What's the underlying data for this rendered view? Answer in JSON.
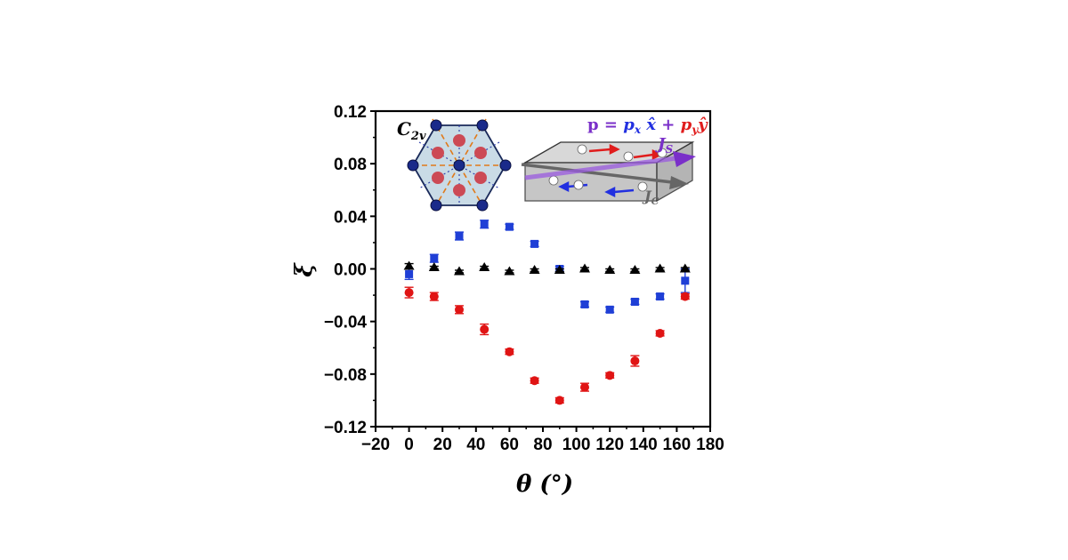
{
  "chart_data": {
    "type": "scatter",
    "title": "",
    "xlabel": "θ (°)",
    "ylabel": "ξ",
    "xlim": [
      -20,
      180
    ],
    "ylim": [
      -0.12,
      0.12
    ],
    "xticks": [
      -20,
      0,
      20,
      40,
      60,
      80,
      100,
      120,
      140,
      160,
      180
    ],
    "xtick_labels": [
      "−20",
      "0",
      "20",
      "40",
      "60",
      "80",
      "100",
      "120",
      "140",
      "160",
      "180"
    ],
    "yticks": [
      -0.12,
      -0.08,
      -0.04,
      0.0,
      0.04,
      0.08,
      0.12
    ],
    "ytick_labels": [
      "−0.12",
      "−0.08",
      "−0.04",
      "0.00",
      "0.04",
      "0.08",
      "0.12"
    ],
    "grid": false,
    "legend": "none",
    "series": [
      {
        "marker": "square",
        "color": "#1f3fd6",
        "x": [
          0,
          15,
          30,
          45,
          60,
          75,
          90,
          105,
          120,
          135,
          150,
          165
        ],
        "y": [
          -0.004,
          0.008,
          0.025,
          0.034,
          0.032,
          0.019,
          0.0,
          -0.027,
          -0.031,
          -0.025,
          -0.021,
          -0.009
        ],
        "yerr": [
          0.004,
          0.003,
          0.003,
          0.003,
          0.002,
          0.002,
          0.002,
          0.002,
          0.002,
          0.002,
          0.002,
          0.009
        ]
      },
      {
        "marker": "triangle",
        "color": "#000000",
        "x": [
          0,
          15,
          30,
          45,
          60,
          75,
          90,
          105,
          120,
          135,
          150,
          165
        ],
        "y": [
          0.002,
          0.001,
          -0.002,
          0.001,
          -0.002,
          -0.001,
          -0.001,
          0.0,
          -0.001,
          -0.001,
          0.0,
          0.0
        ],
        "yerr": [
          0.002,
          0.001,
          0.001,
          0.001,
          0.001,
          0.001,
          0.001,
          0.001,
          0.001,
          0.001,
          0.001,
          0.001
        ]
      },
      {
        "marker": "circle",
        "color": "#e01414",
        "x": [
          0,
          15,
          30,
          45,
          60,
          75,
          90,
          105,
          120,
          135,
          150,
          165
        ],
        "y": [
          -0.018,
          -0.021,
          -0.031,
          -0.046,
          -0.063,
          -0.085,
          -0.1,
          -0.09,
          -0.081,
          -0.07,
          -0.049,
          -0.021
        ],
        "yerr": [
          0.004,
          0.003,
          0.003,
          0.004,
          0.002,
          0.002,
          0.002,
          0.003,
          0.002,
          0.004,
          0.002,
          0.002
        ]
      }
    ]
  },
  "inset": {
    "symmetry_label": "C",
    "symmetry_sub": "2v",
    "pol_p": "p",
    "pol_eq": " = ",
    "pol_px": "p",
    "pol_px_sub": "x",
    "pol_xhat": " x̂",
    "pol_plus": " + ",
    "pol_py": "p",
    "pol_py_sub": "y",
    "pol_yhat": "ŷ",
    "js_label": "J",
    "js_sub": "S",
    "jc_label": "J",
    "jc_sub": "C",
    "colors": {
      "blue": "#2230e0",
      "red": "#e01c1c",
      "purple": "#7a2fc9",
      "gray": "#666666"
    }
  }
}
